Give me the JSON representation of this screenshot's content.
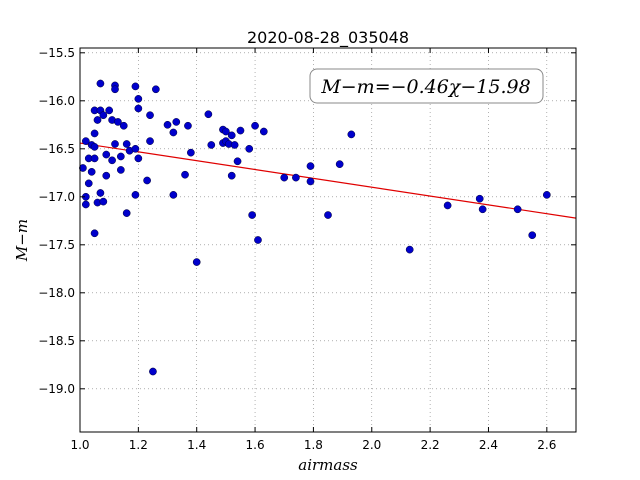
{
  "chart_data": {
    "type": "scatter",
    "title": "2020-08-28_035048",
    "xlabel": "airmass",
    "ylabel": "M−m",
    "xlim": [
      1.0,
      2.7
    ],
    "ylim": [
      -19.45,
      -15.45
    ],
    "y_inverted": false,
    "grid": true,
    "x_ticks": [
      1.0,
      1.2,
      1.4,
      1.6,
      1.8,
      2.0,
      2.2,
      2.4,
      2.6
    ],
    "x_tick_labels": [
      "1.0",
      "1.2",
      "1.4",
      "1.6",
      "1.8",
      "2.0",
      "2.2",
      "2.4",
      "2.6"
    ],
    "y_ticks": [
      -15.5,
      -16.0,
      -16.5,
      -17.0,
      -17.5,
      -18.0,
      -18.5,
      -19.0
    ],
    "y_tick_labels": [
      "−15.5",
      "−16.0",
      "−16.5",
      "−17.0",
      "−17.5",
      "−18.0",
      "−18.5",
      "−19.0"
    ],
    "annotation": "M−m=−0.46χ−15.98",
    "fit_line": {
      "slope": -0.46,
      "intercept": -15.98,
      "color": "#e00000"
    },
    "point_color": "#0000cc",
    "points": [
      [
        1.01,
        -16.7
      ],
      [
        1.02,
        -16.42
      ],
      [
        1.02,
        -17.0
      ],
      [
        1.02,
        -17.08
      ],
      [
        1.03,
        -16.86
      ],
      [
        1.03,
        -16.6
      ],
      [
        1.04,
        -16.74
      ],
      [
        1.04,
        -16.46
      ],
      [
        1.05,
        -16.1
      ],
      [
        1.05,
        -16.6
      ],
      [
        1.05,
        -16.48
      ],
      [
        1.05,
        -17.38
      ],
      [
        1.05,
        -16.34
      ],
      [
        1.06,
        -16.2
      ],
      [
        1.06,
        -17.06
      ],
      [
        1.07,
        -16.96
      ],
      [
        1.07,
        -16.1
      ],
      [
        1.07,
        -15.82
      ],
      [
        1.08,
        -16.15
      ],
      [
        1.08,
        -17.05
      ],
      [
        1.09,
        -16.56
      ],
      [
        1.09,
        -16.78
      ],
      [
        1.1,
        -16.1
      ],
      [
        1.11,
        -16.62
      ],
      [
        1.11,
        -16.2
      ],
      [
        1.12,
        -15.84
      ],
      [
        1.12,
        -15.88
      ],
      [
        1.12,
        -16.45
      ],
      [
        1.13,
        -16.22
      ],
      [
        1.14,
        -16.58
      ],
      [
        1.14,
        -16.72
      ],
      [
        1.15,
        -16.26
      ],
      [
        1.16,
        -17.17
      ],
      [
        1.16,
        -16.45
      ],
      [
        1.17,
        -16.52
      ],
      [
        1.19,
        -15.85
      ],
      [
        1.19,
        -16.5
      ],
      [
        1.19,
        -16.98
      ],
      [
        1.2,
        -15.98
      ],
      [
        1.2,
        -16.08
      ],
      [
        1.2,
        -16.6
      ],
      [
        1.23,
        -16.83
      ],
      [
        1.24,
        -16.15
      ],
      [
        1.24,
        -16.42
      ],
      [
        1.25,
        -18.82
      ],
      [
        1.26,
        -15.88
      ],
      [
        1.3,
        -16.25
      ],
      [
        1.32,
        -16.33
      ],
      [
        1.32,
        -16.98
      ],
      [
        1.33,
        -16.22
      ],
      [
        1.36,
        -16.77
      ],
      [
        1.37,
        -16.26
      ],
      [
        1.38,
        -16.54
      ],
      [
        1.4,
        -17.68
      ],
      [
        1.44,
        -16.14
      ],
      [
        1.45,
        -16.46
      ],
      [
        1.49,
        -16.44
      ],
      [
        1.49,
        -16.3
      ],
      [
        1.5,
        -16.42
      ],
      [
        1.5,
        -16.32
      ],
      [
        1.51,
        -16.45
      ],
      [
        1.52,
        -16.78
      ],
      [
        1.52,
        -16.36
      ],
      [
        1.53,
        -16.46
      ],
      [
        1.54,
        -16.63
      ],
      [
        1.55,
        -16.31
      ],
      [
        1.58,
        -16.5
      ],
      [
        1.59,
        -17.19
      ],
      [
        1.6,
        -16.26
      ],
      [
        1.61,
        -17.45
      ],
      [
        1.63,
        -16.32
      ],
      [
        1.7,
        -16.8
      ],
      [
        1.74,
        -16.8
      ],
      [
        1.79,
        -16.68
      ],
      [
        1.79,
        -16.84
      ],
      [
        1.85,
        -17.19
      ],
      [
        1.89,
        -16.66
      ],
      [
        1.93,
        -16.35
      ],
      [
        2.13,
        -17.55
      ],
      [
        2.26,
        -17.09
      ],
      [
        2.37,
        -17.02
      ],
      [
        2.38,
        -17.13
      ],
      [
        2.5,
        -17.13
      ],
      [
        2.55,
        -17.4
      ],
      [
        2.6,
        -16.98
      ]
    ]
  }
}
